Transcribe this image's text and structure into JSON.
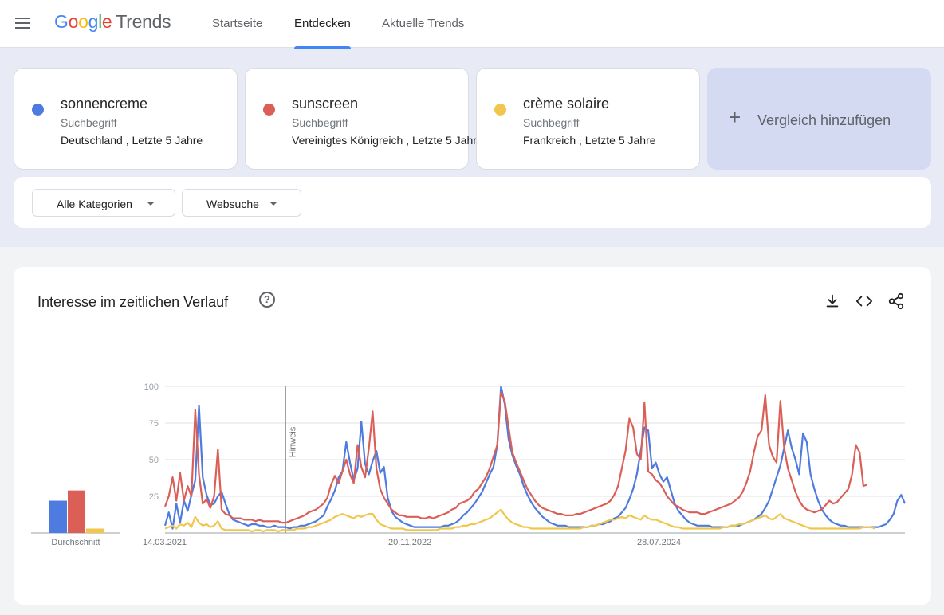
{
  "header": {
    "logo_google": "Google",
    "logo_trends": "Trends",
    "nav": [
      {
        "label": "Startseite",
        "active": false
      },
      {
        "label": "Entdecken",
        "active": true
      },
      {
        "label": "Aktuelle Trends",
        "active": false
      }
    ],
    "accent": "#4285f4"
  },
  "terms": [
    {
      "term": "sonnencreme",
      "type": "Suchbegriff",
      "detail": "Deutschland , Letzte 5 Jahre",
      "color": "#4e7be0"
    },
    {
      "term": "sunscreen",
      "type": "Suchbegriff",
      "detail": "Vereinigtes Königreich , Letzte 5 Jahre",
      "color": "#db5f57"
    },
    {
      "term": "crème solaire",
      "type": "Suchbegriff",
      "detail": "Frankreich , Letzte 5 Jahre",
      "color": "#f0c64c"
    }
  ],
  "add_compare": {
    "icon": "plus-icon",
    "label": "Vergleich hinzufügen"
  },
  "filters": {
    "category": "Alle Kategorien",
    "search_type": "Websuche"
  },
  "panel": {
    "title": "Interesse im zeitlichen Verlauf",
    "icons": [
      "help-icon",
      "download-icon",
      "embed-code-icon",
      "share-icon"
    ]
  },
  "chart_data": {
    "type": "line",
    "average": {
      "label": "Durchschnitt",
      "values": [
        {
          "name": "sonnencreme",
          "value": 22
        },
        {
          "name": "sunscreen",
          "value": 29
        },
        {
          "name": "crème solaire",
          "value": 3
        }
      ]
    },
    "ylim": [
      0,
      100
    ],
    "y_ticks": [
      25,
      50,
      75,
      100
    ],
    "x_tick_labels": [
      "14.03.2021",
      "20.11.2022",
      "28.07.2024"
    ],
    "annotation": {
      "label": "Hinweis",
      "position_index": 32
    },
    "series": [
      {
        "name": "sonnencreme",
        "color": "#4e7be0",
        "values": [
          5,
          14,
          3,
          20,
          7,
          22,
          15,
          26,
          36,
          87,
          38,
          26,
          19,
          20,
          25,
          28,
          20,
          13,
          9,
          8,
          7,
          6,
          5,
          6,
          6,
          5,
          5,
          4,
          4,
          5,
          4,
          4,
          4,
          3,
          4,
          4,
          5,
          5,
          6,
          7,
          8,
          10,
          12,
          18,
          23,
          29,
          38,
          42,
          62,
          48,
          36,
          44,
          76,
          47,
          40,
          49,
          56,
          41,
          45,
          24,
          15,
          11,
          9,
          7,
          6,
          5,
          4,
          4,
          4,
          4,
          4,
          4,
          4,
          4,
          5,
          5,
          6,
          7,
          9,
          12,
          14,
          17,
          20,
          24,
          28,
          34,
          40,
          45,
          60,
          100,
          88,
          64,
          53,
          46,
          40,
          32,
          26,
          21,
          17,
          14,
          11,
          9,
          7,
          6,
          5,
          5,
          5,
          4,
          4,
          4,
          4,
          4,
          4,
          5,
          5,
          6,
          6,
          7,
          8,
          10,
          11,
          14,
          17,
          23,
          30,
          40,
          56,
          72,
          70,
          44,
          48,
          40,
          35,
          38,
          29,
          20,
          15,
          12,
          9,
          7,
          6,
          5,
          5,
          5,
          5,
          4,
          4,
          4,
          4,
          4,
          5,
          5,
          5,
          6,
          7,
          8,
          9,
          11,
          13,
          17,
          22,
          30,
          38,
          46,
          58,
          70,
          58,
          50,
          40,
          68,
          62,
          40,
          30,
          22,
          16,
          12,
          9,
          7,
          6,
          5,
          5,
          4,
          4,
          4,
          4,
          4,
          4,
          4,
          4,
          4,
          5,
          6,
          9,
          13,
          22,
          26,
          20
        ],
        "style": "line"
      },
      {
        "name": "sunscreen",
        "color": "#db5f57",
        "values": [
          18,
          25,
          38,
          22,
          41,
          22,
          32,
          25,
          84,
          40,
          20,
          23,
          17,
          25,
          57,
          16,
          13,
          12,
          10,
          10,
          10,
          9,
          9,
          9,
          8,
          9,
          8,
          8,
          8,
          8,
          8,
          7,
          7,
          8,
          9,
          10,
          11,
          12,
          14,
          15,
          16,
          18,
          20,
          24,
          33,
          39,
          34,
          42,
          50,
          40,
          34,
          60,
          45,
          38,
          58,
          83,
          44,
          30,
          24,
          20,
          16,
          14,
          12,
          12,
          11,
          11,
          11,
          11,
          10,
          10,
          11,
          10,
          11,
          12,
          13,
          14,
          16,
          17,
          20,
          21,
          22,
          24,
          28,
          30,
          34,
          38,
          44,
          52,
          60,
          96,
          90,
          72,
          55,
          48,
          42,
          36,
          30,
          26,
          22,
          19,
          17,
          16,
          15,
          14,
          13,
          13,
          12,
          12,
          12,
          13,
          13,
          14,
          15,
          16,
          17,
          18,
          19,
          20,
          22,
          26,
          32,
          44,
          56,
          78,
          72,
          54,
          50,
          89,
          42,
          40,
          36,
          34,
          30,
          25,
          22,
          19,
          18,
          16,
          15,
          14,
          14,
          14,
          13,
          13,
          14,
          15,
          16,
          17,
          18,
          19,
          20,
          22,
          24,
          28,
          34,
          42,
          55,
          66,
          70,
          94,
          60,
          52,
          48,
          90,
          58,
          44,
          36,
          28,
          22,
          18,
          16,
          15,
          14,
          15,
          16,
          19,
          22,
          20,
          21,
          24,
          27,
          30,
          40,
          60,
          55,
          32,
          33
        ],
        "style": "line"
      },
      {
        "name": "crème solaire",
        "color": "#f0c64c",
        "values": [
          3,
          4,
          5,
          3,
          6,
          5,
          7,
          4,
          11,
          7,
          5,
          6,
          4,
          5,
          8,
          3,
          2,
          2,
          2,
          2,
          2,
          2,
          2,
          1,
          2,
          2,
          1,
          2,
          2,
          2,
          1,
          2,
          2,
          2,
          2,
          3,
          3,
          3,
          4,
          4,
          5,
          6,
          7,
          8,
          9,
          11,
          12,
          13,
          12,
          11,
          10,
          12,
          11,
          12,
          13,
          13,
          9,
          6,
          5,
          4,
          3,
          3,
          3,
          3,
          2,
          2,
          2,
          2,
          2,
          2,
          2,
          2,
          2,
          3,
          3,
          3,
          3,
          4,
          4,
          5,
          5,
          6,
          6,
          7,
          8,
          9,
          10,
          12,
          14,
          16,
          12,
          9,
          7,
          6,
          5,
          4,
          4,
          3,
          3,
          3,
          3,
          3,
          3,
          3,
          3,
          3,
          3,
          3,
          3,
          3,
          3,
          4,
          4,
          5,
          5,
          6,
          7,
          8,
          9,
          9,
          10,
          11,
          10,
          12,
          11,
          10,
          9,
          12,
          10,
          9,
          9,
          8,
          7,
          6,
          5,
          4,
          4,
          3,
          3,
          3,
          3,
          3,
          3,
          3,
          3,
          3,
          3,
          3,
          4,
          4,
          5,
          5,
          6,
          6,
          7,
          8,
          9,
          10,
          11,
          12,
          10,
          9,
          11,
          13,
          10,
          9,
          8,
          7,
          6,
          5,
          4,
          3,
          3,
          3,
          3,
          3,
          3,
          3,
          3,
          3,
          3,
          3,
          3,
          3,
          3,
          4,
          4,
          4,
          3
        ],
        "style": "line"
      }
    ]
  }
}
